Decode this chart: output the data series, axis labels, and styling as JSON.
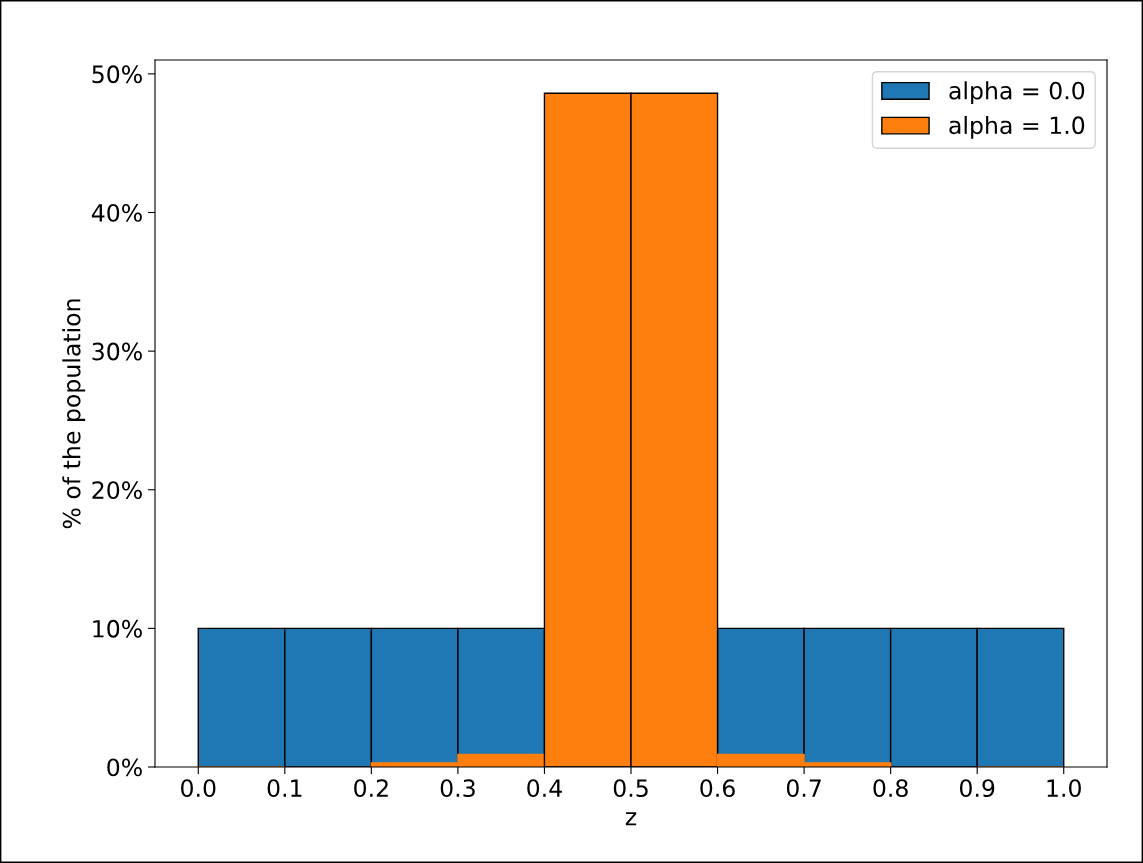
{
  "chart_data": {
    "type": "histogram",
    "xlabel": "z",
    "ylabel": "% of the population",
    "bins": [
      0.0,
      0.1,
      0.2,
      0.3,
      0.4,
      0.5,
      0.6,
      0.7,
      0.8,
      0.9,
      1.0
    ],
    "series": [
      {
        "name": "alpha = 0.0",
        "color": "#1f77b4",
        "values": [
          10,
          10,
          10,
          10,
          null,
          null,
          10,
          10,
          10,
          10
        ]
      },
      {
        "name": "alpha = 1.0",
        "color": "#ff7f0e",
        "values": [
          0.0,
          null,
          0.3,
          0.9,
          48.6,
          48.6,
          0.9,
          0.3,
          null,
          0.0
        ]
      }
    ],
    "xlim": [
      -0.05,
      1.05
    ],
    "xticks": [
      {
        "value": 0.0,
        "label": "0.0"
      },
      {
        "value": 0.1,
        "label": "0.1"
      },
      {
        "value": 0.2,
        "label": "0.2"
      },
      {
        "value": 0.3,
        "label": "0.3"
      },
      {
        "value": 0.4,
        "label": "0.4"
      },
      {
        "value": 0.5,
        "label": "0.5"
      },
      {
        "value": 0.6,
        "label": "0.6"
      },
      {
        "value": 0.7,
        "label": "0.7"
      },
      {
        "value": 0.8,
        "label": "0.8"
      },
      {
        "value": 0.9,
        "label": "0.9"
      },
      {
        "value": 1.0,
        "label": "1.0"
      }
    ],
    "ylim": [
      0,
      51
    ],
    "yticks": [
      {
        "value": 0,
        "label": "0%"
      },
      {
        "value": 10,
        "label": "10%"
      },
      {
        "value": 20,
        "label": "20%"
      },
      {
        "value": 30,
        "label": "30%"
      },
      {
        "value": 40,
        "label": "40%"
      },
      {
        "value": 50,
        "label": "50%"
      }
    ],
    "grid": false,
    "legend": "top right"
  }
}
